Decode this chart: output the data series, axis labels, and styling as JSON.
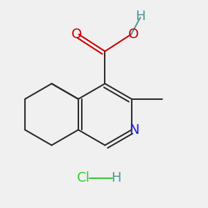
{
  "background_color": "#f0f0f0",
  "bond_color": "#2a2a2a",
  "bond_width": 1.5,
  "dbo": 0.018,
  "colors": {
    "N": "#1a1aee",
    "O": "#cc0000",
    "H_OH": "#4a9a9a",
    "Cl": "#33cc33",
    "H_HCl": "#4a9a9a"
  },
  "font_size": 14,
  "font_size_hcl": 14
}
